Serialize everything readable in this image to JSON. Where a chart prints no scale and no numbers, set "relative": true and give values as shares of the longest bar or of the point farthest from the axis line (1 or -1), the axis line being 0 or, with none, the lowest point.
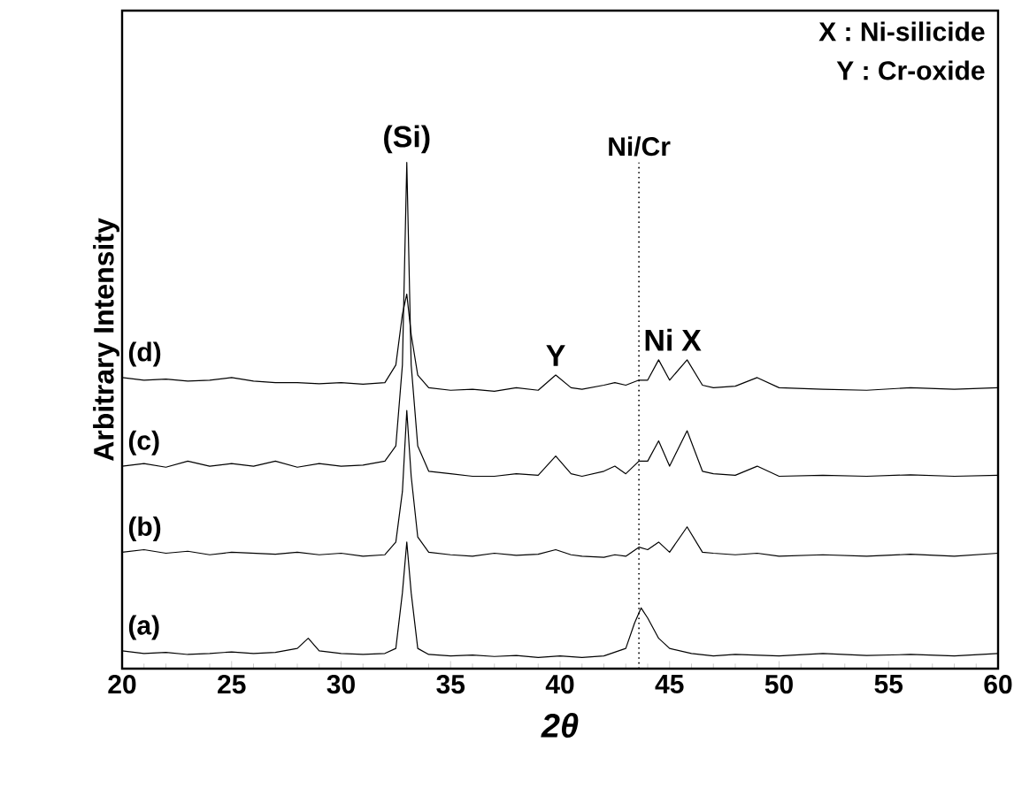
{
  "chart_data": {
    "type": "line",
    "relative": true,
    "xlabel": "2θ",
    "ylabel": "Arbitrary Intensity",
    "xlim": [
      20,
      60
    ],
    "xticks": [
      20,
      25,
      30,
      35,
      40,
      45,
      50,
      55,
      60
    ],
    "grid": false,
    "legend": false,
    "marker": "none",
    "line_style": "solid",
    "series": [
      {
        "name": "(a)",
        "color": "#000000",
        "x": [
          20,
          21,
          22,
          23,
          24,
          25,
          26,
          27,
          28,
          28.5,
          29,
          30,
          31,
          32,
          32.5,
          32.8,
          33,
          33.2,
          33.5,
          34,
          35,
          36,
          37,
          38,
          39,
          40,
          41,
          42,
          43,
          43.4,
          43.7,
          44,
          44.5,
          45,
          46,
          47,
          48,
          50,
          52,
          54,
          56,
          58,
          60
        ],
        "values": [
          0.035,
          0.03,
          0.032,
          0.028,
          0.03,
          0.033,
          0.03,
          0.032,
          0.04,
          0.06,
          0.035,
          0.03,
          0.028,
          0.03,
          0.04,
          0.15,
          0.25,
          0.15,
          0.04,
          0.028,
          0.025,
          0.027,
          0.024,
          0.026,
          0.022,
          0.025,
          0.022,
          0.025,
          0.04,
          0.09,
          0.12,
          0.1,
          0.06,
          0.04,
          0.03,
          0.025,
          0.028,
          0.025,
          0.03,
          0.026,
          0.028,
          0.025,
          0.03
        ]
      },
      {
        "name": "(b)",
        "color": "#000000",
        "x": [
          20,
          21,
          22,
          23,
          24,
          25,
          26,
          27,
          28,
          29,
          30,
          31,
          32,
          32.5,
          32.8,
          33,
          33.2,
          33.5,
          34,
          35,
          36,
          37,
          38,
          39,
          39.8,
          40.5,
          41,
          42,
          42.5,
          43,
          43.6,
          44,
          44.5,
          45,
          45.8,
          46.5,
          47,
          48,
          49,
          50,
          52,
          54,
          56,
          58,
          60
        ],
        "values": [
          0.23,
          0.235,
          0.228,
          0.232,
          0.225,
          0.23,
          0.228,
          0.226,
          0.23,
          0.225,
          0.228,
          0.222,
          0.225,
          0.25,
          0.35,
          0.51,
          0.38,
          0.26,
          0.23,
          0.225,
          0.222,
          0.228,
          0.224,
          0.226,
          0.235,
          0.225,
          0.222,
          0.22,
          0.225,
          0.222,
          0.24,
          0.235,
          0.25,
          0.23,
          0.28,
          0.23,
          0.228,
          0.225,
          0.228,
          0.222,
          0.225,
          0.222,
          0.226,
          0.222,
          0.228
        ]
      },
      {
        "name": "(c)",
        "color": "#000000",
        "x": [
          20,
          21,
          22,
          23,
          24,
          25,
          26,
          27,
          28,
          29,
          30,
          31,
          32,
          32.5,
          32.8,
          33,
          33.2,
          33.5,
          34,
          35,
          36,
          37,
          38,
          39,
          39.8,
          40.5,
          41,
          42,
          42.5,
          43,
          43.6,
          44,
          44.5,
          45,
          45.8,
          46.5,
          47,
          48,
          49,
          50,
          52,
          54,
          56,
          58,
          60
        ],
        "values": [
          0.4,
          0.405,
          0.398,
          0.41,
          0.4,
          0.405,
          0.4,
          0.41,
          0.398,
          0.405,
          0.4,
          0.402,
          0.41,
          0.44,
          0.6,
          1.0,
          0.6,
          0.44,
          0.39,
          0.385,
          0.38,
          0.38,
          0.385,
          0.382,
          0.42,
          0.385,
          0.38,
          0.39,
          0.4,
          0.385,
          0.41,
          0.41,
          0.45,
          0.4,
          0.47,
          0.39,
          0.385,
          0.382,
          0.4,
          0.38,
          0.382,
          0.38,
          0.383,
          0.38,
          0.382
        ]
      },
      {
        "name": "(d)",
        "color": "#000000",
        "x": [
          20,
          21,
          22,
          23,
          24,
          25,
          26,
          27,
          28,
          29,
          30,
          31,
          32,
          32.5,
          32.8,
          33,
          33.2,
          33.5,
          34,
          35,
          36,
          37,
          38,
          39,
          39.8,
          40.5,
          41,
          42,
          42.5,
          43,
          43.6,
          44,
          44.5,
          45,
          45.8,
          46.5,
          47,
          48,
          49,
          50,
          52,
          54,
          56,
          58,
          60
        ],
        "values": [
          0.575,
          0.57,
          0.572,
          0.568,
          0.57,
          0.575,
          0.568,
          0.565,
          0.565,
          0.563,
          0.565,
          0.562,
          0.565,
          0.6,
          0.7,
          0.74,
          0.66,
          0.58,
          0.555,
          0.55,
          0.552,
          0.548,
          0.555,
          0.55,
          0.58,
          0.555,
          0.552,
          0.56,
          0.565,
          0.56,
          0.57,
          0.57,
          0.61,
          0.57,
          0.61,
          0.56,
          0.555,
          0.558,
          0.575,
          0.555,
          0.552,
          0.55,
          0.555,
          0.552,
          0.555
        ]
      }
    ],
    "annotations": [
      {
        "text": "(Si)",
        "x": 33,
        "y": 1.0
      },
      {
        "text": "Y",
        "x": 39.8,
        "y": 0.58
      },
      {
        "text": "X",
        "x": 46,
        "y": 0.61
      },
      {
        "text": "Ni",
        "x": 44.5,
        "y": 0.61
      },
      "X : Ni-silicide",
      "Y : Cr-oxide"
    ],
    "ref_lines": [
      {
        "axis": "x",
        "value": 43.6,
        "label": "Ni/Cr",
        "line_style": "dotted",
        "color": "#000000"
      }
    ]
  }
}
